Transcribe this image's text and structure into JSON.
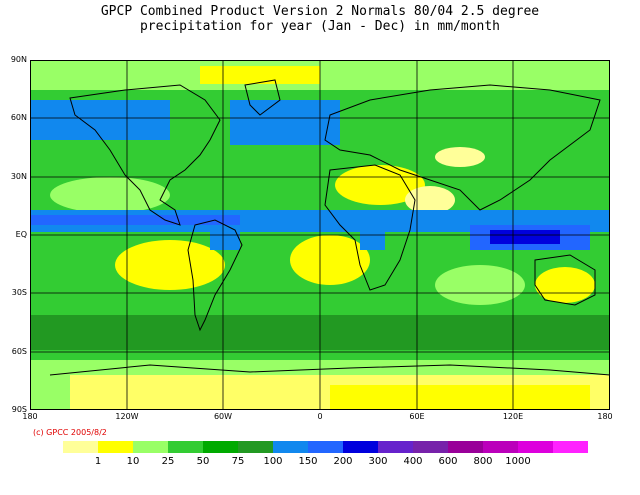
{
  "title_line1": "GPCP Combined Product Version 2  Normals 80/04 2.5 degree",
  "title_line2": "precipitation for year (Jan - Dec) in mm/month",
  "credit": "(c) GPCC 2005/8/2",
  "lat_labels": [
    "90N",
    "60N",
    "30N",
    "EQ",
    "30S",
    "60S",
    "90S"
  ],
  "lon_labels": [
    "180",
    "120W",
    "60W",
    "0",
    "60E",
    "120E",
    "180"
  ],
  "legend": {
    "colors": [
      "#ffff99",
      "#ffff00",
      "#99ff66",
      "#33cc33",
      "#00aa00",
      "#229922",
      "#1188ee",
      "#2266ff",
      "#0000dd",
      "#6622cc",
      "#7722aa",
      "#990099",
      "#bb00bb",
      "#dd00dd",
      "#ff22ff"
    ],
    "labels": [
      "1",
      "10",
      "25",
      "50",
      "75",
      "100",
      "150",
      "200",
      "300",
      "400",
      "600",
      "800",
      "1000"
    ]
  },
  "colors": {
    "ocean_base": "#22bb22",
    "background": "#ffffff",
    "credit_text": "#e00000"
  }
}
